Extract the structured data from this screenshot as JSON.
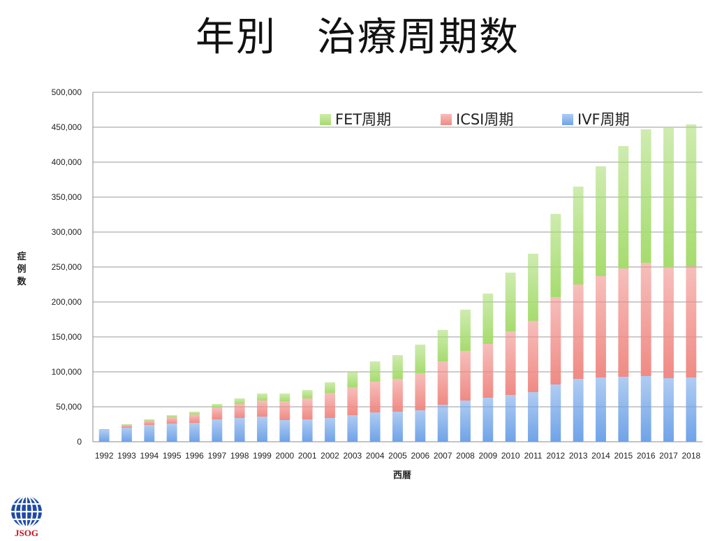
{
  "title": "年別　治療周期数",
  "logo": {
    "text": "JSOG"
  },
  "chart_data": {
    "type": "bar",
    "stacked": true,
    "title": "年別　治療周期数",
    "xlabel": "西暦",
    "ylabel": "症例数",
    "ylim": [
      0,
      500000
    ],
    "yticks": [
      0,
      50000,
      100000,
      150000,
      200000,
      250000,
      300000,
      350000,
      400000,
      450000,
      500000
    ],
    "ytick_labels": [
      "0",
      "50,000",
      "100,000",
      "150,000",
      "200,000",
      "250,000",
      "300,000",
      "350,000",
      "400,000",
      "450,000",
      "500,000"
    ],
    "grid": true,
    "legend_position": "top",
    "categories": [
      "1992",
      "1993",
      "1994",
      "1995",
      "1996",
      "1997",
      "1998",
      "1999",
      "2000",
      "2001",
      "2002",
      "2003",
      "2004",
      "2005",
      "2006",
      "2007",
      "2008",
      "2009",
      "2010",
      "2011",
      "2012",
      "2013",
      "2014",
      "2015",
      "2016",
      "2017",
      "2018"
    ],
    "series": [
      {
        "name": "IVF周期",
        "color": "#6fa3e8",
        "values": [
          17000,
          20000,
          24000,
          26000,
          27000,
          32000,
          34000,
          36000,
          31000,
          32000,
          34000,
          38000,
          42000,
          43000,
          45000,
          53000,
          59000,
          63000,
          67000,
          71000,
          82000,
          90000,
          92000,
          93000,
          94000,
          91000,
          92000
        ]
      },
      {
        "name": "ICSI周期",
        "color": "#f08a84",
        "values": [
          1000,
          4000,
          6000,
          9000,
          12000,
          17000,
          20000,
          23000,
          27000,
          30000,
          36000,
          40000,
          44000,
          47000,
          53000,
          62000,
          71000,
          77000,
          91000,
          102000,
          125000,
          135000,
          145000,
          155000,
          162000,
          158000,
          159000
        ]
      },
      {
        "name": "FET周期",
        "color": "#a6dc6e",
        "values": [
          0,
          1000,
          2000,
          3000,
          4000,
          5000,
          8000,
          10000,
          11000,
          12000,
          15000,
          22000,
          29000,
          34000,
          41000,
          45000,
          59000,
          72000,
          84000,
          96000,
          119000,
          140000,
          157000,
          175000,
          191000,
          200000,
          203000
        ]
      }
    ]
  }
}
